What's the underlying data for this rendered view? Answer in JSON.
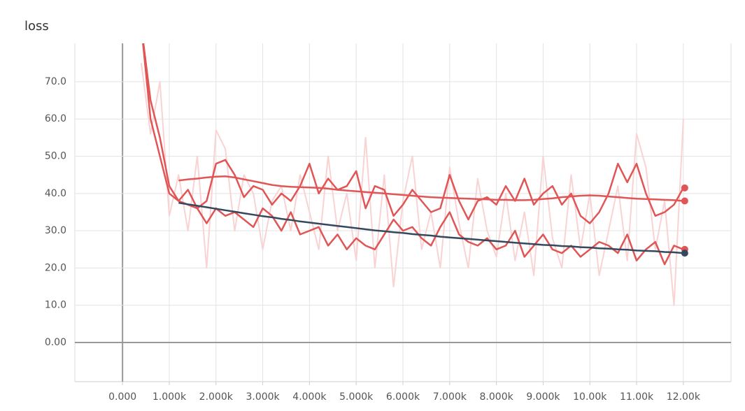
{
  "chart_data": {
    "type": "line",
    "title": "loss",
    "x": [
      400,
      600,
      800,
      1000,
      1200,
      1400,
      1600,
      1800,
      2000,
      2200,
      2400,
      2600,
      2800,
      3000,
      3200,
      3400,
      3600,
      3800,
      4000,
      4200,
      4400,
      4600,
      4800,
      5000,
      5200,
      5400,
      5600,
      5800,
      6000,
      6200,
      6400,
      6600,
      6800,
      7000,
      7200,
      7400,
      7600,
      7800,
      8000,
      8200,
      8400,
      8600,
      8800,
      9000,
      9200,
      9400,
      9600,
      9800,
      10000,
      10200,
      10400,
      10600,
      10800,
      11000,
      11200,
      11400,
      11600,
      11800,
      12000
    ],
    "series": [
      {
        "color": "#f9d3d3",
        "values": [
          75,
          56,
          70,
          34,
          45,
          30,
          50,
          20,
          57,
          52,
          30,
          45,
          40,
          25,
          38,
          42,
          30,
          45,
          35,
          25,
          50,
          30,
          40,
          22,
          55,
          20,
          45,
          15,
          38,
          50,
          25,
          35,
          20,
          47,
          32,
          20,
          44,
          30,
          23,
          40,
          22,
          35,
          18,
          50,
          28,
          20,
          45,
          25,
          40,
          18,
          30,
          42,
          22,
          56,
          47,
          25,
          38,
          10,
          60
        ]
      },
      {
        "color": "#e05555",
        "values": [
          85,
          60,
          50,
          40,
          38,
          41,
          36,
          38,
          48,
          49,
          45,
          39,
          42,
          41,
          37,
          40,
          38,
          42,
          48,
          40,
          44,
          41,
          42,
          46,
          36,
          42,
          41,
          34,
          37,
          41,
          38,
          35,
          36,
          45,
          38,
          33,
          38,
          39,
          37,
          42,
          38,
          44,
          37,
          40,
          42,
          37,
          40,
          34,
          32,
          35,
          40,
          48,
          43,
          48,
          40,
          34,
          35,
          37,
          41.5
        ]
      },
      {
        "color": "#e05555",
        "values": [
          85,
          65,
          55,
          42,
          38,
          37,
          36,
          32,
          36,
          34,
          35,
          33,
          31,
          36,
          34,
          30,
          35,
          29,
          30,
          31,
          26,
          29,
          25,
          28,
          26,
          25,
          29,
          33,
          30,
          31,
          28,
          26,
          31,
          35,
          29,
          27,
          26,
          28,
          25,
          26,
          30,
          23,
          26,
          29,
          25,
          24,
          26,
          23,
          25,
          27,
          26,
          24,
          29,
          22,
          25,
          27,
          21,
          26,
          25
        ]
      },
      {
        "color": "#e05555",
        "values": [
          null,
          null,
          null,
          null,
          43.5,
          43.8,
          44,
          44.3,
          44.5,
          44.6,
          44.3,
          43.8,
          43.3,
          42.8,
          42.3,
          42,
          41.8,
          41.7,
          41.6,
          41.5,
          41.3,
          41,
          40.8,
          40.6,
          40.4,
          40.2,
          40,
          39.8,
          39.6,
          39.4,
          39.2,
          39,
          38.9,
          38.8,
          38.7,
          38.6,
          38.5,
          38.4,
          38.3,
          38.3,
          38.2,
          38.2,
          38.3,
          38.5,
          38.7,
          39,
          39.2,
          39.4,
          39.5,
          39.4,
          39.2,
          39,
          38.8,
          38.6,
          38.5,
          38.4,
          38.3,
          38.2,
          38
        ]
      },
      {
        "color": "#34495e",
        "values": [
          null,
          null,
          null,
          null,
          37.5,
          37.1,
          36.7,
          36.3,
          35.9,
          35.5,
          35.1,
          34.7,
          34.3,
          33.9,
          33.6,
          33.2,
          32.9,
          32.5,
          32.2,
          31.9,
          31.6,
          31.3,
          31,
          30.7,
          30.4,
          30.1,
          29.9,
          29.6,
          29.4,
          29.1,
          28.9,
          28.7,
          28.4,
          28.2,
          28,
          27.8,
          27.6,
          27.4,
          27.2,
          27,
          26.8,
          26.6,
          26.4,
          26.2,
          26.1,
          25.9,
          25.8,
          25.6,
          25.5,
          25.3,
          25.2,
          25,
          24.9,
          24.7,
          24.6,
          24.5,
          24.3,
          24.2,
          24
        ]
      }
    ],
    "xlim": [
      -1020,
      13020
    ],
    "ylim": [
      -10.5,
      80.3
    ],
    "xticks": [
      {
        "value": 0,
        "label": "0.000"
      },
      {
        "value": 1000,
        "label": "1.000k"
      },
      {
        "value": 2000,
        "label": "2.000k"
      },
      {
        "value": 3000,
        "label": "3.000k"
      },
      {
        "value": 4000,
        "label": "4.000k"
      },
      {
        "value": 5000,
        "label": "5.000k"
      },
      {
        "value": 6000,
        "label": "6.000k"
      },
      {
        "value": 7000,
        "label": "7.000k"
      },
      {
        "value": 8000,
        "label": "8.000k"
      },
      {
        "value": 9000,
        "label": "9.000k"
      },
      {
        "value": 10000,
        "label": "10.00k"
      },
      {
        "value": 11000,
        "label": "11.00k"
      },
      {
        "value": 12000,
        "label": "12.00k"
      }
    ],
    "yticks": [
      {
        "value": 0,
        "label": "0.00"
      },
      {
        "value": 10,
        "label": "10.0"
      },
      {
        "value": 20,
        "label": "20.0"
      },
      {
        "value": 30,
        "label": "30.0"
      },
      {
        "value": 40,
        "label": "40.0"
      },
      {
        "value": 50,
        "label": "50.0"
      },
      {
        "value": 60,
        "label": "60.0"
      },
      {
        "value": 70,
        "label": "70.0"
      }
    ],
    "grid": true
  }
}
